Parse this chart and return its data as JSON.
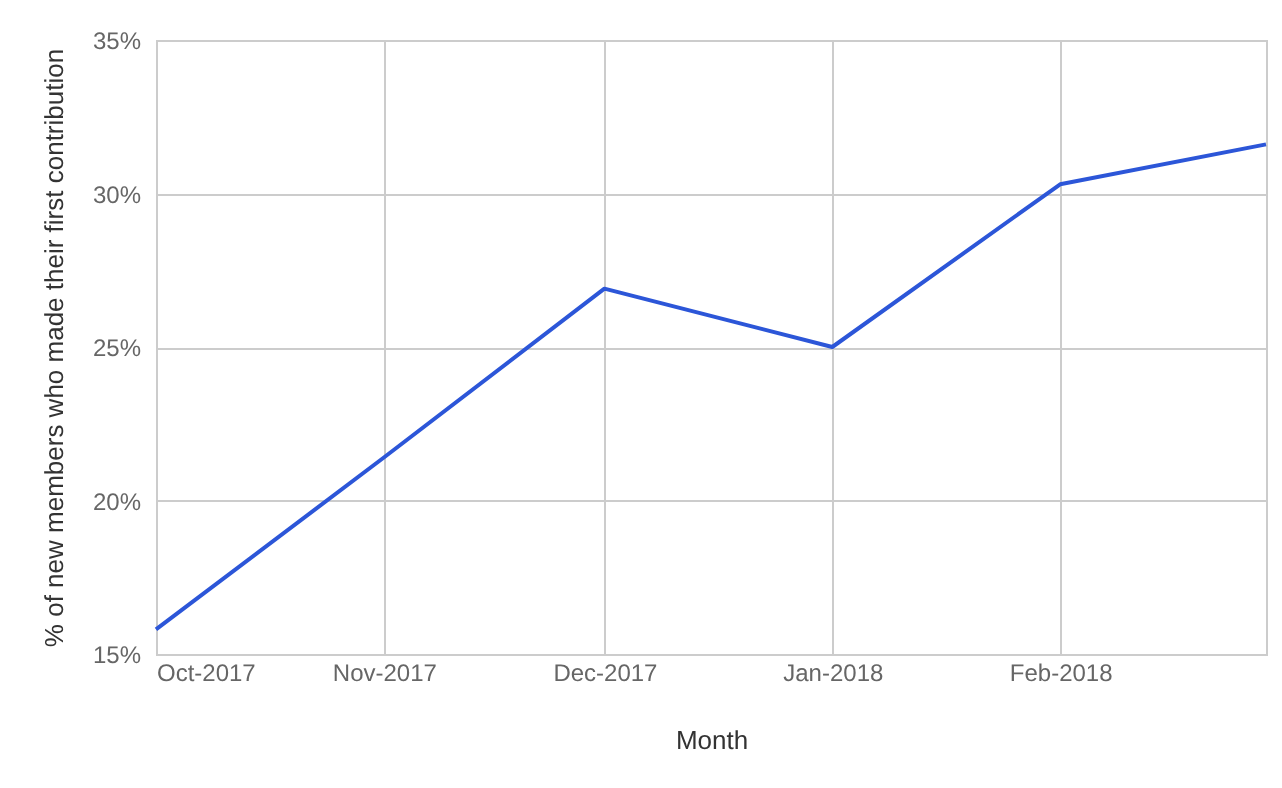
{
  "chart_data": {
    "type": "line",
    "xlabel": "Month",
    "ylabel": "% of new members who made their first contribution",
    "x": [
      "2017-10",
      "2017-11",
      "2017-12",
      "2018-01",
      "2018-02",
      "2018-03"
    ],
    "series": [
      {
        "color": "#2c56d8",
        "values": [
          15.8,
          21.4,
          26.9,
          25.0,
          30.3,
          31.6
        ]
      }
    ],
    "xlim": [
      "2017-10",
      "2018-03"
    ],
    "xticks": [
      {
        "value": "2017-10",
        "label": "Oct-2017"
      },
      {
        "value": "2017-11",
        "label": "Nov-2017"
      },
      {
        "value": "2017-12",
        "label": "Dec-2017"
      },
      {
        "value": "2018-01",
        "label": "Jan-2018"
      },
      {
        "value": "2018-02",
        "label": "Feb-2018"
      }
    ],
    "ylim": [
      15,
      35
    ],
    "yticks": [
      {
        "value": 15,
        "label": "15%"
      },
      {
        "value": 20,
        "label": "20%"
      },
      {
        "value": 25,
        "label": "25%"
      },
      {
        "value": 30,
        "label": "30%"
      },
      {
        "value": 35,
        "label": "35%"
      }
    ],
    "grid": true,
    "legend": false,
    "marker": "none",
    "line_style": "solid"
  }
}
